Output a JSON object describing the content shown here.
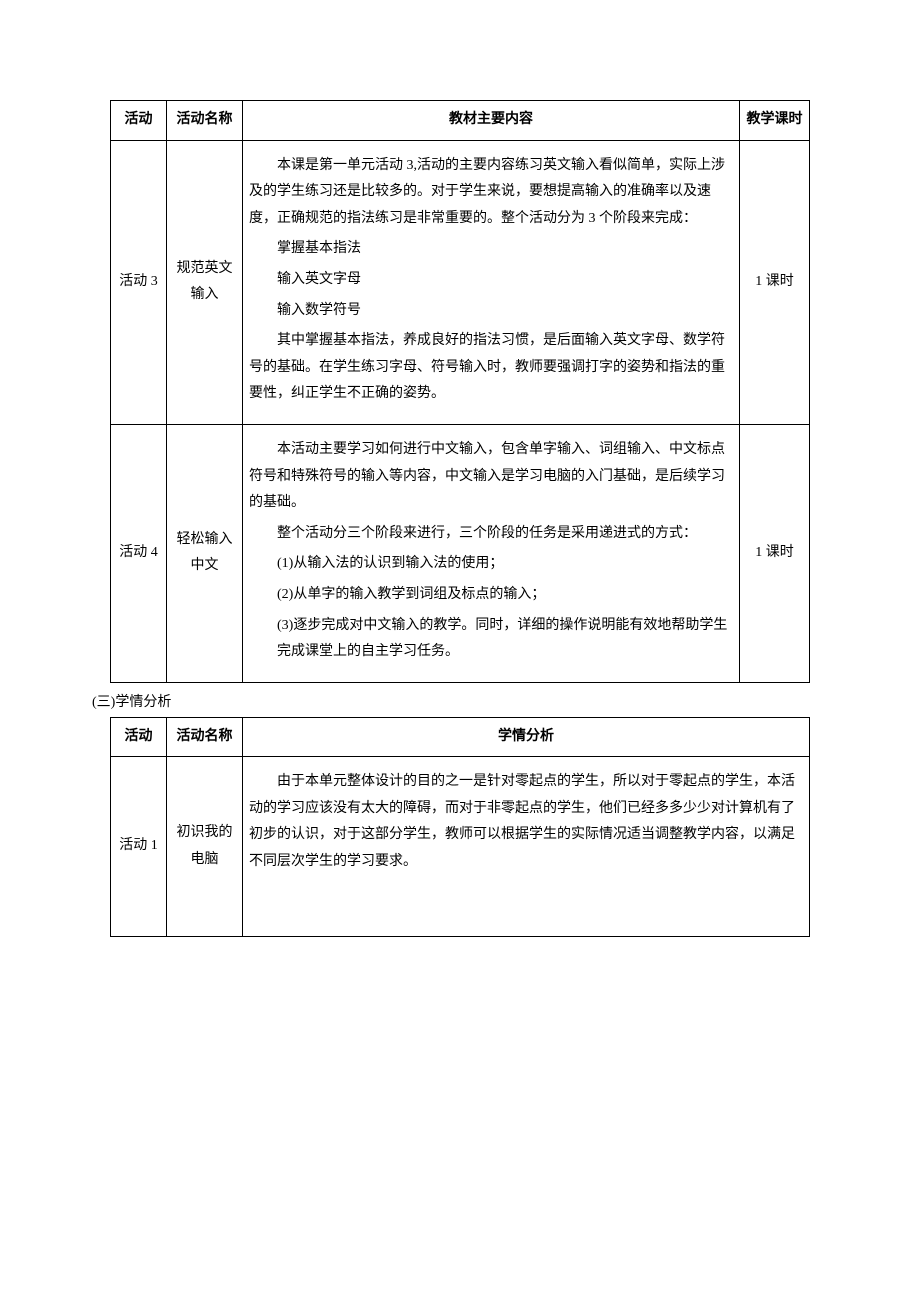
{
  "table1": {
    "headers": {
      "activity": "活动",
      "name": "活动名称",
      "content": "教材主要内容",
      "hours": "教学课时"
    },
    "rows": [
      {
        "activity": "活动 3",
        "name": "规范英文输入",
        "hours": "1 课时",
        "content": [
          {
            "cls": "indent",
            "text": "本课是第一单元活动 3,活动的主要内容练习英文输入看似简单，实际上涉及的学生练习还是比较多的。对于学生来说，要想提高输入的准确率以及速度，正确规范的指法练习是非常重要的。整个活动分为 3 个阶段来完成："
          },
          {
            "cls": "indent-more",
            "text": "掌握基本指法"
          },
          {
            "cls": "indent-more",
            "text": "输入英文字母"
          },
          {
            "cls": "indent-more",
            "text": "输入数学符号"
          },
          {
            "cls": "indent",
            "text": "其中掌握基本指法，养成良好的指法习惯，是后面输入英文字母、数学符号的基础。在学生练习字母、符号输入时，教师要强调打字的姿势和指法的重要性，纠正学生不正确的姿势。"
          }
        ]
      },
      {
        "activity": "活动 4",
        "name": "轻松输入中文",
        "hours": "1 课时",
        "content": [
          {
            "cls": "indent",
            "text": "本活动主要学习如何进行中文输入，包含单字输入、词组输入、中文标点符号和特殊符号的输入等内容，中文输入是学习电脑的入门基础，是后续学习的基础。"
          },
          {
            "cls": "indent",
            "text": "整个活动分三个阶段来进行，三个阶段的任务是采用递进式的方式："
          },
          {
            "cls": "indent-more",
            "text": "(1)从输入法的认识到输入法的使用；"
          },
          {
            "cls": "indent-more",
            "text": "(2)从单字的输入教学到词组及标点的输入；"
          },
          {
            "cls": "indent-more",
            "text": "(3)逐步完成对中文输入的教学。同时，详细的操作说明能有效地帮助学生完成课堂上的自主学习任务。"
          }
        ]
      }
    ]
  },
  "sectionLabel": "(三)学情分析",
  "table2": {
    "headers": {
      "activity": "活动",
      "name": "活动名称",
      "analysis": "学情分析"
    },
    "rows": [
      {
        "activity": "活动 1",
        "name": "初识我的电脑",
        "content": [
          {
            "cls": "indent",
            "text": "由于本单元整体设计的目的之一是针对零起点的学生，所以对于零起点的学生，本活动的学习应该没有太大的障碍，而对于非零起点的学生，他们已经多多少少对计算机有了初步的认识，对于这部分学生，教师可以根据学生的实际情况适当调整教学内容，以满足不同层次学生的学习要求。"
          }
        ]
      }
    ]
  }
}
